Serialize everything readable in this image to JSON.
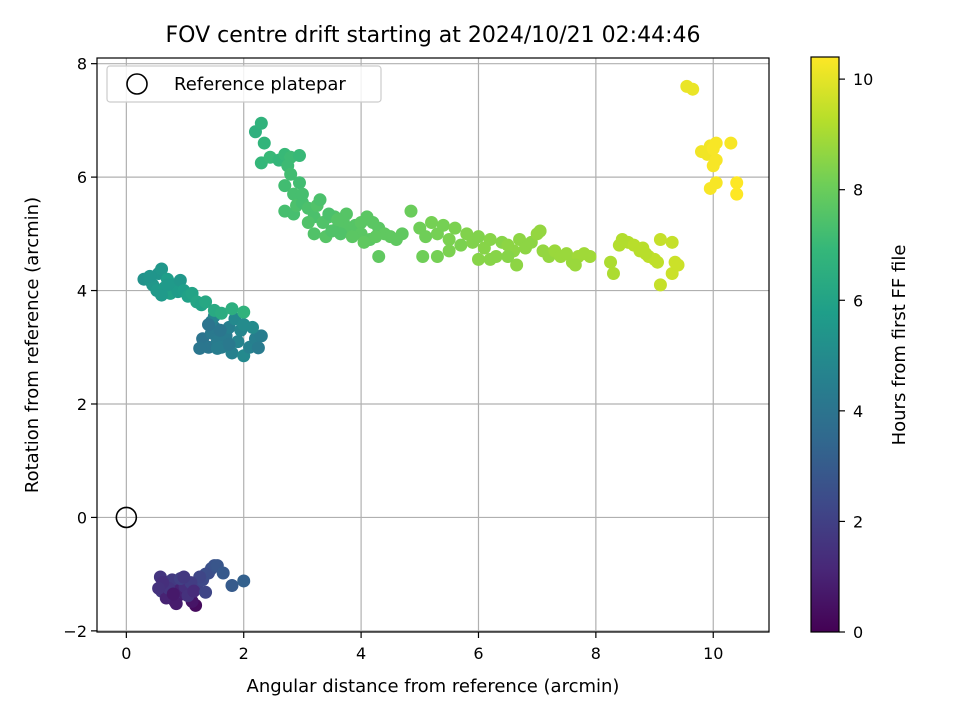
{
  "chart_data": {
    "type": "scatter",
    "title": "FOV centre drift starting at 2024/10/21 02:44:46",
    "xlabel": "Angular distance from reference (arcmin)",
    "ylabel": "Rotation from reference (arcmin)",
    "xlim": [
      -0.5,
      10.95
    ],
    "ylim": [
      -2.02,
      8.1
    ],
    "xticks": [
      0,
      2,
      4,
      6,
      8,
      10
    ],
    "yticks": [
      -2,
      0,
      2,
      4,
      6,
      8
    ],
    "grid": true,
    "legend": {
      "position": "top-left",
      "entries": [
        "Reference platepar"
      ]
    },
    "reference_point": {
      "x": 0,
      "y": 0
    },
    "colorbar": {
      "label": "Hours from first FF file",
      "range": [
        0,
        10.4
      ],
      "ticks": [
        0,
        2,
        4,
        6,
        8,
        10
      ],
      "colormap": [
        "#440154",
        "#482878",
        "#3e4989",
        "#31688e",
        "#26828e",
        "#1f9e89",
        "#35b779",
        "#6ece58",
        "#b5de2b",
        "#fde725"
      ]
    },
    "points": [
      [
        1.18,
        -1.55,
        0.3
      ],
      [
        1.12,
        -1.48,
        0.6
      ],
      [
        0.95,
        -1.35,
        0.9
      ],
      [
        0.82,
        -1.47,
        1.1
      ],
      [
        0.75,
        -1.38,
        1.3
      ],
      [
        0.65,
        -1.2,
        1.5
      ],
      [
        0.58,
        -1.05,
        1.6
      ],
      [
        0.7,
        -1.15,
        1.2
      ],
      [
        0.88,
        -1.28,
        1.0
      ],
      [
        1.0,
        -1.22,
        1.4
      ],
      [
        0.6,
        -1.3,
        1.7
      ],
      [
        0.78,
        -1.1,
        1.8
      ],
      [
        0.92,
        -1.08,
        2.0
      ],
      [
        0.68,
        -1.42,
        1.0
      ],
      [
        0.85,
        -1.52,
        0.8
      ],
      [
        1.05,
        -1.38,
        1.5
      ],
      [
        1.2,
        -1.25,
        2.1
      ],
      [
        1.3,
        -1.1,
        2.3
      ],
      [
        1.4,
        -0.98,
        2.4
      ],
      [
        1.45,
        -0.9,
        2.6
      ],
      [
        1.5,
        -0.85,
        2.7
      ],
      [
        1.55,
        -0.85,
        2.8
      ],
      [
        1.35,
        -1.0,
        2.5
      ],
      [
        1.25,
        -1.05,
        2.2
      ],
      [
        1.1,
        -1.15,
        1.9
      ],
      [
        0.72,
        -1.25,
        1.6
      ],
      [
        0.62,
        -1.15,
        1.4
      ],
      [
        0.98,
        -1.05,
        1.7
      ],
      [
        1.15,
        -1.3,
        1.3
      ],
      [
        1.35,
        -1.32,
        2.2
      ],
      [
        1.8,
        -1.2,
        3.0
      ],
      [
        2.0,
        -1.12,
        3.2
      ],
      [
        1.65,
        -0.98,
        2.9
      ],
      [
        0.55,
        -1.25,
        1.5
      ],
      [
        0.8,
        -1.35,
        0.7
      ],
      [
        1.3,
        3.15,
        4.0
      ],
      [
        1.4,
        3.0,
        4.1
      ],
      [
        1.45,
        3.25,
        4.2
      ],
      [
        1.55,
        3.1,
        4.3
      ],
      [
        1.62,
        3.0,
        4.4
      ],
      [
        1.7,
        3.2,
        4.3
      ],
      [
        1.75,
        3.35,
        4.5
      ],
      [
        1.8,
        2.9,
        4.6
      ],
      [
        1.9,
        3.1,
        4.7
      ],
      [
        1.95,
        3.3,
        4.8
      ],
      [
        2.0,
        2.85,
        4.9
      ],
      [
        2.1,
        3.0,
        4.6
      ],
      [
        2.2,
        3.15,
        4.5
      ],
      [
        2.3,
        3.2,
        4.4
      ],
      [
        1.5,
        3.35,
        4.2
      ],
      [
        1.45,
        3.45,
        4.5
      ],
      [
        1.5,
        3.55,
        4.7
      ],
      [
        1.85,
        3.5,
        4.9
      ],
      [
        2.0,
        3.4,
        5.0
      ],
      [
        1.6,
        3.3,
        4.1
      ],
      [
        1.4,
        3.4,
        4.0
      ],
      [
        1.75,
        3.05,
        4.2
      ],
      [
        1.55,
        2.98,
        4.4
      ],
      [
        1.25,
        2.98,
        4.1
      ],
      [
        2.15,
        3.35,
        5.0
      ],
      [
        2.25,
        2.99,
        4.3
      ],
      [
        0.3,
        4.2,
        5.3
      ],
      [
        0.4,
        4.18,
        5.4
      ],
      [
        0.45,
        4.1,
        5.5
      ],
      [
        0.55,
        4.3,
        5.4
      ],
      [
        0.6,
        4.38,
        5.5
      ],
      [
        0.52,
        4.0,
        5.6
      ],
      [
        0.65,
        4.05,
        5.7
      ],
      [
        0.7,
        4.2,
        5.8
      ],
      [
        0.75,
        3.95,
        5.9
      ],
      [
        0.82,
        4.1,
        5.6
      ],
      [
        0.88,
        3.98,
        5.7
      ],
      [
        0.92,
        4.18,
        5.5
      ],
      [
        0.98,
        4.0,
        5.8
      ],
      [
        1.05,
        3.9,
        5.9
      ],
      [
        1.12,
        3.95,
        6.0
      ],
      [
        1.2,
        3.8,
        6.1
      ],
      [
        1.28,
        3.75,
        6.0
      ],
      [
        1.35,
        3.8,
        6.2
      ],
      [
        1.5,
        3.65,
        6.3
      ],
      [
        1.62,
        3.6,
        6.4
      ],
      [
        1.8,
        3.68,
        6.5
      ],
      [
        2.0,
        3.62,
        6.7
      ],
      [
        0.6,
        3.92,
        5.6
      ],
      [
        0.7,
        4.1,
        5.6
      ],
      [
        0.4,
        4.25,
        5.4
      ],
      [
        2.2,
        6.8,
        6.6
      ],
      [
        2.3,
        6.95,
        6.7
      ],
      [
        2.35,
        6.6,
        6.8
      ],
      [
        2.3,
        6.25,
        6.9
      ],
      [
        2.45,
        6.35,
        7.0
      ],
      [
        2.6,
        6.3,
        6.9
      ],
      [
        2.7,
        6.4,
        7.0
      ],
      [
        2.8,
        6.35,
        7.1
      ],
      [
        2.95,
        6.38,
        7.0
      ],
      [
        2.75,
        6.2,
        7.1
      ],
      [
        2.8,
        6.05,
        7.2
      ],
      [
        2.7,
        5.85,
        7.2
      ],
      [
        2.85,
        5.7,
        7.3
      ],
      [
        2.95,
        5.9,
        7.2
      ],
      [
        2.7,
        5.4,
        7.3
      ],
      [
        2.85,
        5.35,
        7.3
      ],
      [
        2.9,
        5.5,
        7.4
      ],
      [
        3.0,
        5.55,
        7.3
      ],
      [
        3.1,
        5.45,
        7.4
      ],
      [
        3.2,
        5.3,
        7.4
      ],
      [
        3.25,
        5.5,
        7.5
      ],
      [
        3.35,
        5.2,
        7.5
      ],
      [
        3.45,
        5.3,
        7.5
      ],
      [
        3.6,
        5.1,
        7.5
      ],
      [
        3.7,
        5.2,
        7.6
      ],
      [
        3.8,
        5.05,
        7.6
      ],
      [
        3.9,
        5.15,
        7.6
      ],
      [
        4.0,
        5.2,
        7.7
      ],
      [
        4.1,
        5.3,
        7.7
      ],
      [
        4.2,
        5.2,
        7.7
      ],
      [
        4.3,
        5.1,
        7.7
      ],
      [
        4.4,
        5.0,
        7.8
      ],
      [
        4.5,
        4.95,
        7.8
      ],
      [
        4.6,
        4.9,
        7.8
      ],
      [
        4.7,
        5.0,
        7.8
      ],
      [
        4.3,
        4.6,
        7.8
      ],
      [
        3.3,
        5.6,
        7.4
      ],
      [
        3.55,
        5.3,
        7.5
      ],
      [
        3.65,
        5.0,
        7.5
      ],
      [
        3.2,
        5.0,
        7.5
      ],
      [
        3.4,
        4.95,
        7.6
      ],
      [
        3.75,
        5.35,
        7.6
      ],
      [
        4.0,
        5.0,
        7.7
      ],
      [
        4.15,
        4.9,
        7.7
      ],
      [
        3.0,
        5.7,
        7.3
      ],
      [
        3.1,
        5.2,
        7.5
      ],
      [
        3.5,
        5.05,
        7.5
      ],
      [
        3.85,
        4.95,
        7.7
      ],
      [
        4.05,
        4.85,
        7.8
      ],
      [
        4.25,
        4.95,
        7.8
      ],
      [
        3.45,
        5.35,
        7.4
      ],
      [
        3.6,
        5.25,
        7.6
      ],
      [
        4.85,
        5.4,
        8.0
      ],
      [
        5.0,
        5.1,
        8.1
      ],
      [
        5.1,
        4.95,
        8.1
      ],
      [
        5.2,
        5.2,
        8.2
      ],
      [
        5.3,
        5.0,
        8.2
      ],
      [
        5.4,
        5.15,
        8.2
      ],
      [
        5.5,
        4.9,
        8.3
      ],
      [
        5.6,
        5.1,
        8.3
      ],
      [
        5.7,
        4.8,
        8.3
      ],
      [
        5.8,
        5.0,
        8.4
      ],
      [
        5.9,
        4.85,
        8.4
      ],
      [
        6.0,
        4.95,
        8.4
      ],
      [
        6.1,
        4.75,
        8.5
      ],
      [
        6.2,
        4.9,
        8.5
      ],
      [
        6.3,
        4.6,
        8.5
      ],
      [
        6.4,
        4.85,
        8.5
      ],
      [
        6.5,
        4.8,
        8.6
      ],
      [
        6.6,
        4.7,
        8.6
      ],
      [
        6.7,
        4.9,
        8.6
      ],
      [
        6.8,
        4.75,
        8.6
      ],
      [
        6.9,
        4.85,
        8.6
      ],
      [
        7.0,
        5.0,
        8.7
      ],
      [
        7.05,
        5.05,
        8.7
      ],
      [
        7.1,
        4.7,
        8.7
      ],
      [
        7.2,
        4.6,
        8.7
      ],
      [
        7.3,
        4.7,
        8.8
      ],
      [
        7.4,
        4.6,
        8.8
      ],
      [
        7.5,
        4.65,
        8.8
      ],
      [
        7.6,
        4.5,
        8.8
      ],
      [
        7.7,
        4.6,
        8.9
      ],
      [
        7.8,
        4.65,
        8.9
      ],
      [
        7.9,
        4.6,
        8.9
      ],
      [
        6.0,
        4.55,
        8.5
      ],
      [
        6.2,
        4.55,
        8.5
      ],
      [
        6.65,
        4.45,
        8.6
      ],
      [
        5.3,
        4.6,
        8.2
      ],
      [
        5.05,
        4.6,
        8.1
      ],
      [
        5.5,
        4.7,
        8.3
      ],
      [
        6.5,
        4.6,
        8.5
      ],
      [
        7.65,
        4.45,
        8.8
      ],
      [
        8.25,
        4.5,
        9.1
      ],
      [
        8.3,
        4.3,
        9.1
      ],
      [
        8.4,
        4.8,
        9.2
      ],
      [
        8.45,
        4.9,
        9.2
      ],
      [
        8.55,
        4.85,
        9.2
      ],
      [
        8.65,
        4.8,
        9.3
      ],
      [
        8.75,
        4.7,
        9.3
      ],
      [
        8.8,
        4.75,
        9.3
      ],
      [
        8.9,
        4.6,
        9.4
      ],
      [
        9.0,
        4.55,
        9.4
      ],
      [
        9.05,
        4.5,
        9.4
      ],
      [
        9.1,
        4.9,
        9.5
      ],
      [
        9.3,
        4.85,
        9.5
      ],
      [
        9.35,
        4.5,
        9.6
      ],
      [
        9.3,
        4.3,
        9.6
      ],
      [
        9.4,
        4.45,
        9.6
      ],
      [
        9.1,
        4.1,
        9.5
      ],
      [
        8.85,
        4.65,
        9.3
      ],
      [
        9.55,
        7.6,
        10.1
      ],
      [
        9.65,
        7.55,
        10.1
      ],
      [
        9.8,
        6.45,
        10.2
      ],
      [
        9.9,
        6.4,
        10.2
      ],
      [
        9.95,
        6.55,
        10.2
      ],
      [
        10.0,
        6.5,
        10.3
      ],
      [
        10.05,
        6.3,
        10.3
      ],
      [
        10.0,
        6.2,
        10.3
      ],
      [
        9.95,
        5.8,
        10.3
      ],
      [
        10.05,
        5.9,
        10.3
      ],
      [
        10.3,
        6.6,
        10.3
      ],
      [
        10.4,
        5.9,
        10.4
      ],
      [
        10.4,
        5.7,
        10.4
      ],
      [
        10.05,
        6.6,
        10.3
      ]
    ]
  }
}
